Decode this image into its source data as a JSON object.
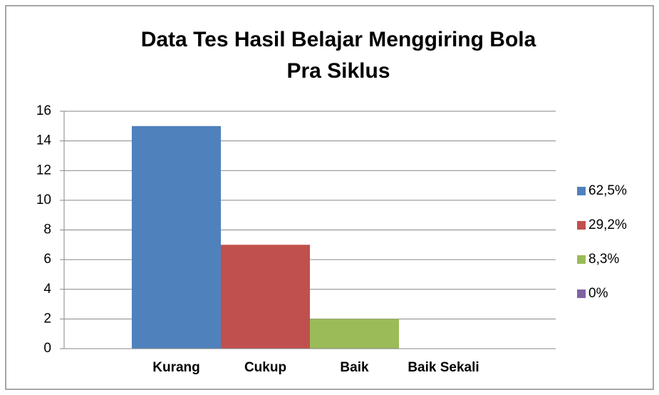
{
  "chart_data": {
    "type": "bar",
    "title": [
      "Data Tes Hasil Belajar Menggiring Bola",
      "Pra Siklus"
    ],
    "categories": [
      "Kurang",
      "Cukup",
      "Baik",
      "Baik Sekali"
    ],
    "series": [
      {
        "name": "62,5%",
        "color": "#4f81bd",
        "values": [
          15,
          null,
          null,
          null
        ]
      },
      {
        "name": "29,2%",
        "color": "#c0504d",
        "values": [
          null,
          7,
          null,
          null
        ]
      },
      {
        "name": "8,3%",
        "color": "#9bbb59",
        "values": [
          null,
          null,
          2,
          null
        ]
      },
      {
        "name": "0%",
        "color": "#8064a2",
        "values": [
          null,
          null,
          null,
          0
        ]
      }
    ],
    "ylim": [
      0,
      16
    ],
    "yticks": [
      0,
      2,
      4,
      6,
      8,
      10,
      12,
      14,
      16
    ],
    "grid": true,
    "legend": "right"
  }
}
